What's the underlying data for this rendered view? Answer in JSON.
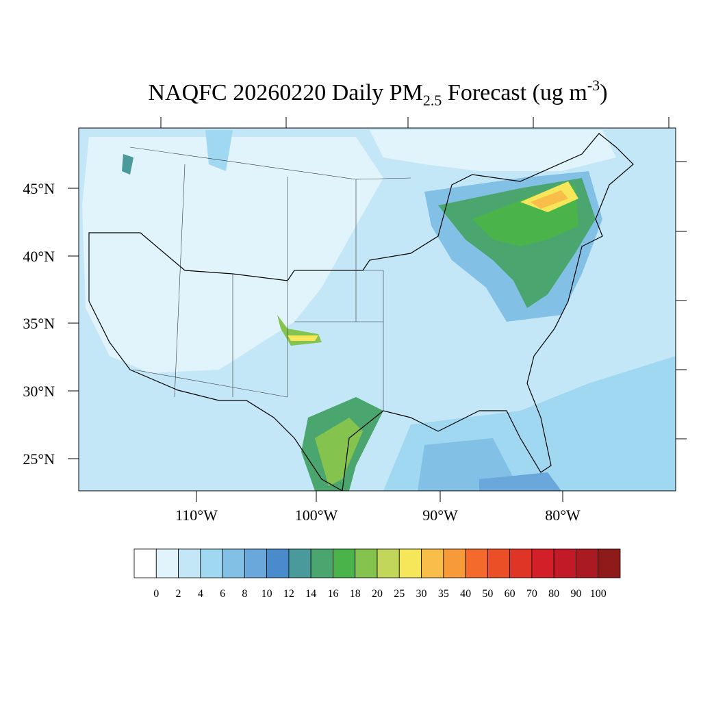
{
  "title": {
    "main": "NAQFC 20260220 Daily PM",
    "subscript": "2.5",
    "middle": " Forecast (ug m",
    "superscript": "-3",
    "end": ")"
  },
  "lat_labels": [
    "45°N",
    "40°N",
    "35°N",
    "30°N",
    "25°N"
  ],
  "lon_labels": [
    "110°W",
    "100°W",
    "90°W",
    "80°W"
  ],
  "colorbar": {
    "levels": [
      0,
      2,
      4,
      6,
      8,
      10,
      12,
      14,
      16,
      18,
      20,
      25,
      30,
      35,
      40,
      50,
      60,
      70,
      80,
      90,
      100
    ],
    "colors": [
      "#ffffff",
      "#e1f3fb",
      "#c3e7f7",
      "#a0d8f1",
      "#82c0e6",
      "#6aa8dc",
      "#4a8ccb",
      "#4a9a9c",
      "#4aa66e",
      "#4ab34a",
      "#84c44e",
      "#c2d65a",
      "#f5e65a",
      "#f9bd4a",
      "#f79a3a",
      "#f36a2c",
      "#ea4f28",
      "#df3526",
      "#d31f28",
      "#c21a26",
      "#aa1a22",
      "#8f1a1a"
    ]
  }
}
